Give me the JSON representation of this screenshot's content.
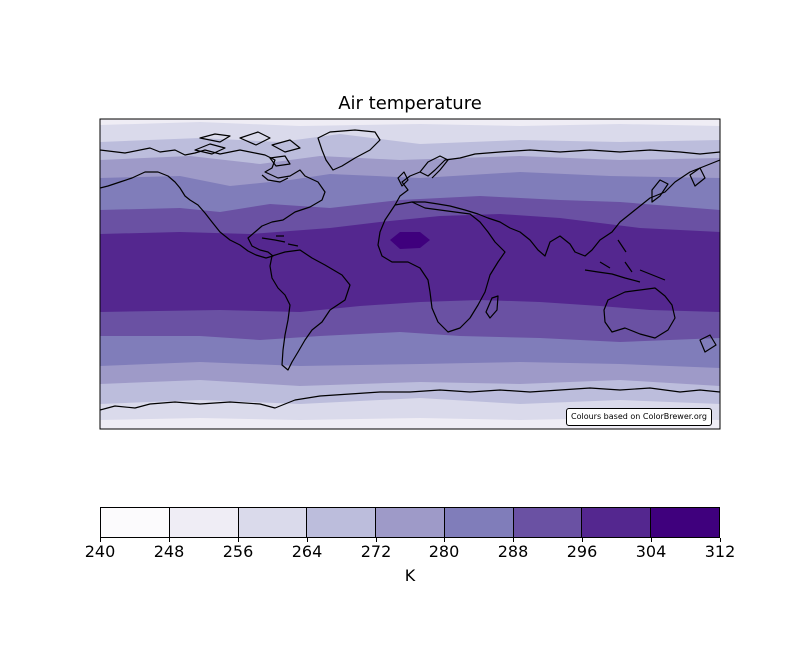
{
  "title": "Air temperature",
  "credit": "Colours based on ColorBrewer.org",
  "map": {
    "projection": "plate-carree",
    "extent_lon": [
      -180,
      180
    ],
    "extent_lat": [
      -90,
      90
    ],
    "field": "air temperature",
    "warmest_region": "central Sahara"
  },
  "colorbar": {
    "label": "K",
    "levels": [
      240,
      248,
      256,
      264,
      272,
      280,
      288,
      296,
      304,
      312
    ],
    "colors": [
      "#fcfbfd",
      "#efedf5",
      "#dadaeb",
      "#bcbddc",
      "#9e9ac8",
      "#807dba",
      "#6a51a3",
      "#54278f",
      "#3f007d"
    ]
  }
}
